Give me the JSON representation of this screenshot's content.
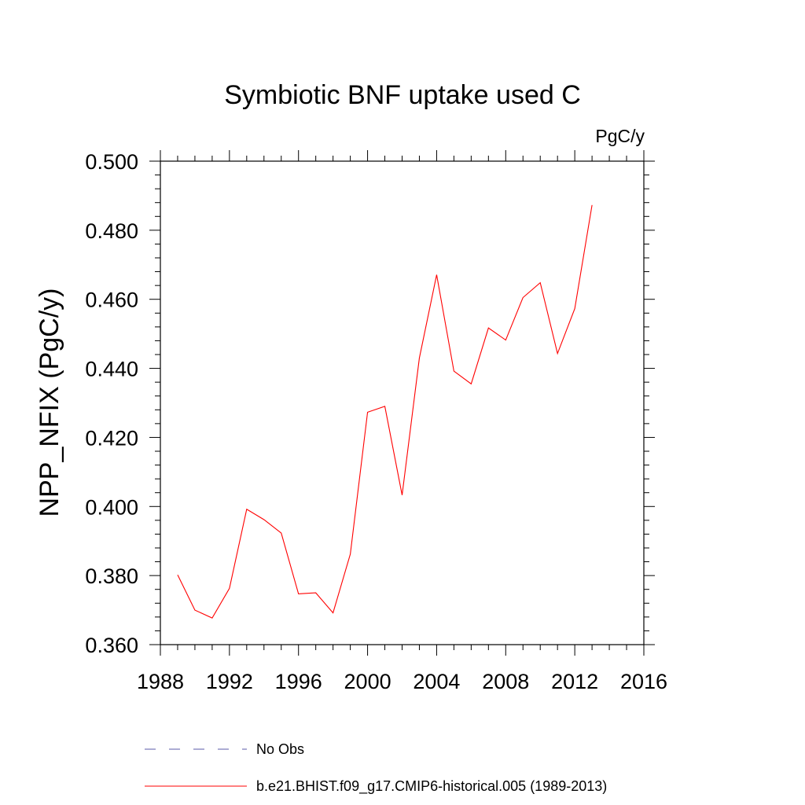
{
  "chart_data": {
    "type": "line",
    "title": "Symbiotic BNF uptake used C",
    "units_label": "PgC/y",
    "ylabel": "NPP_NFIX  (PgC/y)",
    "xlabel": "",
    "xlim": [
      1988,
      2016
    ],
    "ylim": [
      0.36,
      0.5
    ],
    "x_ticks": [
      "1988",
      "1992",
      "1996",
      "2000",
      "2004",
      "2008",
      "2012",
      "2016"
    ],
    "y_ticks": [
      "0.360",
      "0.380",
      "0.400",
      "0.420",
      "0.440",
      "0.460",
      "0.480",
      "0.500"
    ],
    "x_minor_step": 1,
    "y_minor_step": 0.004,
    "grid": false,
    "legend_position": "bottom",
    "series": [
      {
        "name": "No Obs",
        "color": "#5a5aa8",
        "dash": "dashed",
        "x": [],
        "values": []
      },
      {
        "name": "b.e21.BHIST.f09_g17.CMIP6-historical.005 (1989-2013)",
        "color": "#ff0000",
        "dash": "solid",
        "x": [
          1989,
          1990,
          1991,
          1992,
          1993,
          1994,
          1995,
          1996,
          1997,
          1998,
          1999,
          2000,
          2001,
          2002,
          2003,
          2004,
          2005,
          2006,
          2007,
          2008,
          2009,
          2010,
          2011,
          2012,
          2013
        ],
        "values": [
          0.3802,
          0.37,
          0.3677,
          0.3763,
          0.3992,
          0.3962,
          0.3923,
          0.3747,
          0.375,
          0.3692,
          0.3862,
          0.4273,
          0.429,
          0.4033,
          0.443,
          0.4671,
          0.4392,
          0.4355,
          0.4517,
          0.4482,
          0.4605,
          0.4648,
          0.4443,
          0.4573,
          0.4873
        ]
      }
    ]
  }
}
